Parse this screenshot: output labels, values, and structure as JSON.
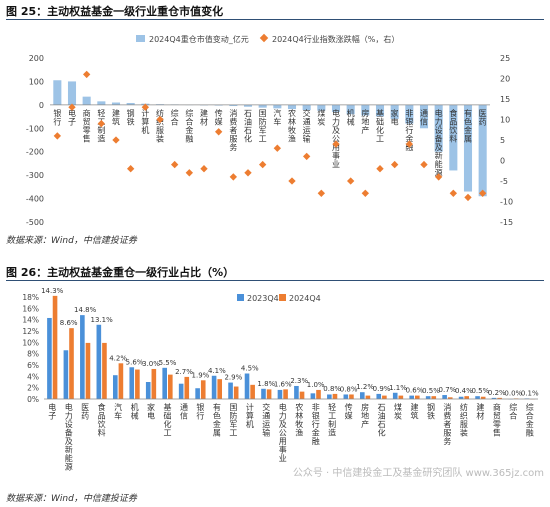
{
  "figure1": {
    "title": "图 25：主动权益基金一级行业重仓市值变化",
    "source": "数据来源：Wind，中信建投证券"
  },
  "figure2": {
    "title": "图 26：主动权益基金重仓一级行业占比（%）",
    "source": "数据来源：Wind，中信建投证券"
  },
  "watermark": "公众号 · 中信建投金工及基金研究团队 www.365jz.com",
  "colors": {
    "bar_light": "#9dc3e6",
    "bar_blue": "#4a90d9",
    "bar_orange": "#ed7d31",
    "diamond": "#ed7d31"
  },
  "chart_data": [
    {
      "type": "bar",
      "legend": [
        "2024Q4重仓市值变动_亿元",
        "2024Q4行业指数涨跌幅（%，右）"
      ],
      "categories": [
        "银行",
        "电子",
        "商贸零售",
        "轻工制造",
        "建筑",
        "钢铁",
        "计算机",
        "纺织服装",
        "综合",
        "综合金融",
        "建材",
        "传媒",
        "消费者服务",
        "石油石化",
        "国防军工",
        "汽车",
        "农林牧渔",
        "交通运输",
        "煤炭",
        "电力及公用事业",
        "机械",
        "房地产",
        "基础化工",
        "家电",
        "非银行金融",
        "通信",
        "电力设备及新能源",
        "食品饮料",
        "有色金属",
        "医药"
      ],
      "series": [
        {
          "name": "2024Q4重仓市值变动_亿元",
          "axis": "left",
          "values": [
            105,
            100,
            35,
            15,
            10,
            8,
            5,
            3,
            2,
            1,
            -2,
            -3,
            -5,
            -8,
            -12,
            -15,
            -18,
            -22,
            -25,
            -30,
            -40,
            -45,
            -50,
            -60,
            -80,
            -100,
            -200,
            -280,
            -370,
            -390
          ]
        },
        {
          "name": "2024Q4行业指数涨跌幅（%，右）",
          "axis": "right",
          "values": [
            6,
            13,
            21,
            9,
            5,
            -2,
            13,
            10,
            -1,
            -3,
            -2,
            7,
            -4,
            -3,
            -1,
            3,
            -5,
            1,
            -8,
            4,
            -5,
            -8,
            -2,
            -1,
            4,
            -1,
            -4,
            -8,
            -9,
            -8
          ]
        }
      ],
      "ylim_left": [
        -500,
        200
      ],
      "yticks_left": [
        200,
        100,
        0,
        -100,
        -200,
        -300,
        -400,
        -500
      ],
      "ylim_right": [
        -15,
        25
      ],
      "yticks_right": [
        25,
        20,
        15,
        10,
        5,
        0,
        -5,
        -10,
        -15
      ]
    },
    {
      "type": "bar",
      "legend": [
        "2023Q4",
        "2024Q4"
      ],
      "categories": [
        "电子",
        "电力设备及新能源",
        "医药",
        "食品饮料",
        "汽车",
        "机械",
        "家电",
        "基础化工",
        "通信",
        "银行",
        "有色金属",
        "国防军工",
        "计算机",
        "交通运输",
        "电力及公用事业",
        "农林牧渔",
        "非银行金融",
        "轻工制造",
        "传媒",
        "房地产",
        "石油石化",
        "煤炭",
        "建筑",
        "钢铁",
        "消费者服务",
        "纺织服装",
        "建材",
        "商贸零售",
        "综合",
        "综合金融"
      ],
      "series": [
        {
          "name": "2023Q4",
          "values": [
            14.3,
            8.6,
            14.8,
            13.1,
            4.2,
            5.6,
            3.0,
            5.5,
            2.7,
            1.9,
            4.1,
            2.9,
            4.5,
            1.8,
            1.6,
            2.3,
            1.0,
            0.8,
            0.8,
            1.2,
            0.9,
            1.1,
            0.6,
            0.5,
            0.7,
            0.4,
            0.5,
            0.2,
            0.0,
            0.1
          ]
        },
        {
          "name": "2024Q4",
          "values": [
            18.2,
            12.5,
            9.9,
            9.9,
            6.3,
            5.2,
            5.3,
            4.3,
            3.9,
            3.3,
            3.5,
            2.2,
            2.5,
            1.7,
            1.7,
            1.3,
            1.6,
            0.9,
            0.8,
            0.6,
            0.6,
            0.6,
            0.6,
            0.5,
            0.3,
            0.5,
            0.4,
            0.2,
            0.1,
            0.0
          ]
        }
      ],
      "labels": [
        "14.3%",
        "8.6%",
        "14.8%",
        "13.1%",
        "4.2%",
        "5.6%",
        "3.0%",
        "5.5%",
        "2.7%",
        "1.9%",
        "4.1%",
        "2.9%",
        "4.5%",
        "1.8%",
        "1.6%",
        "2.3%",
        "1.0%",
        "0.8%",
        "0.8%",
        "1.2%",
        "0.9%",
        "1.1%",
        "0.6%",
        "0.5%",
        "0.7%",
        "0.4%",
        "0.5%",
        "0.2%",
        "0.0%",
        "0.1%"
      ],
      "ylim": [
        0,
        18
      ],
      "yticks": [
        "0%",
        "2%",
        "4%",
        "6%",
        "8%",
        "10%",
        "12%",
        "14%",
        "16%",
        "18%"
      ]
    }
  ]
}
